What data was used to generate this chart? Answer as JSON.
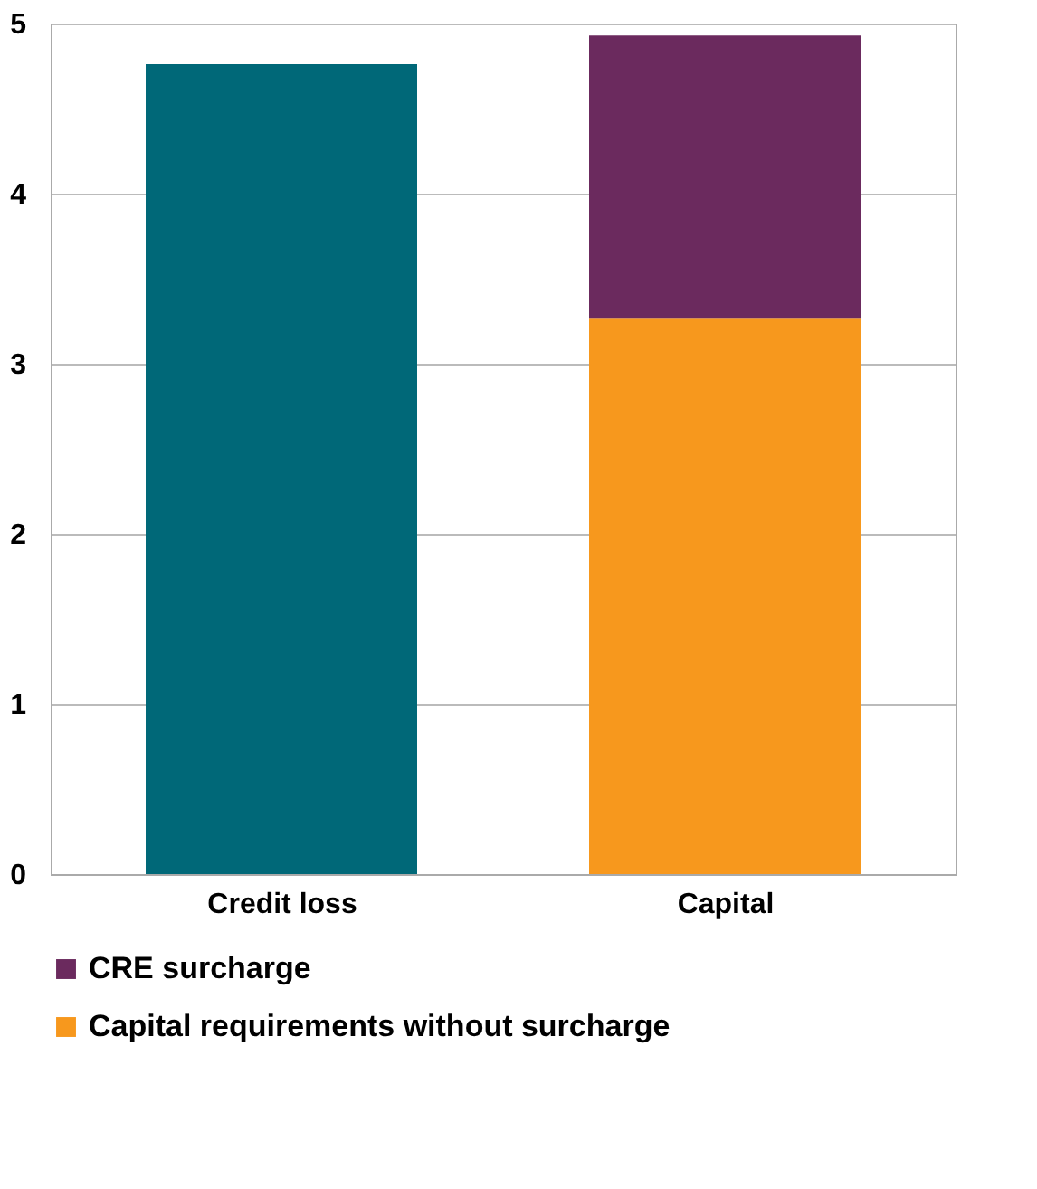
{
  "chart_data": {
    "type": "bar",
    "stacked": true,
    "categories": [
      "Credit loss",
      "Capital"
    ],
    "series": [
      {
        "color": "#006878",
        "values": [
          4.76,
          null
        ]
      },
      {
        "name": "Capital requirements without surcharge",
        "color": "#f7981d",
        "values": [
          null,
          3.27
        ]
      },
      {
        "name": "CRE surcharge",
        "color": "#6b2a5e",
        "values": [
          null,
          1.66
        ]
      }
    ],
    "ylim": [
      0,
      5
    ],
    "yticks": [
      0,
      1,
      2,
      3,
      4,
      5
    ],
    "grid": "y",
    "legend": "bottom"
  }
}
